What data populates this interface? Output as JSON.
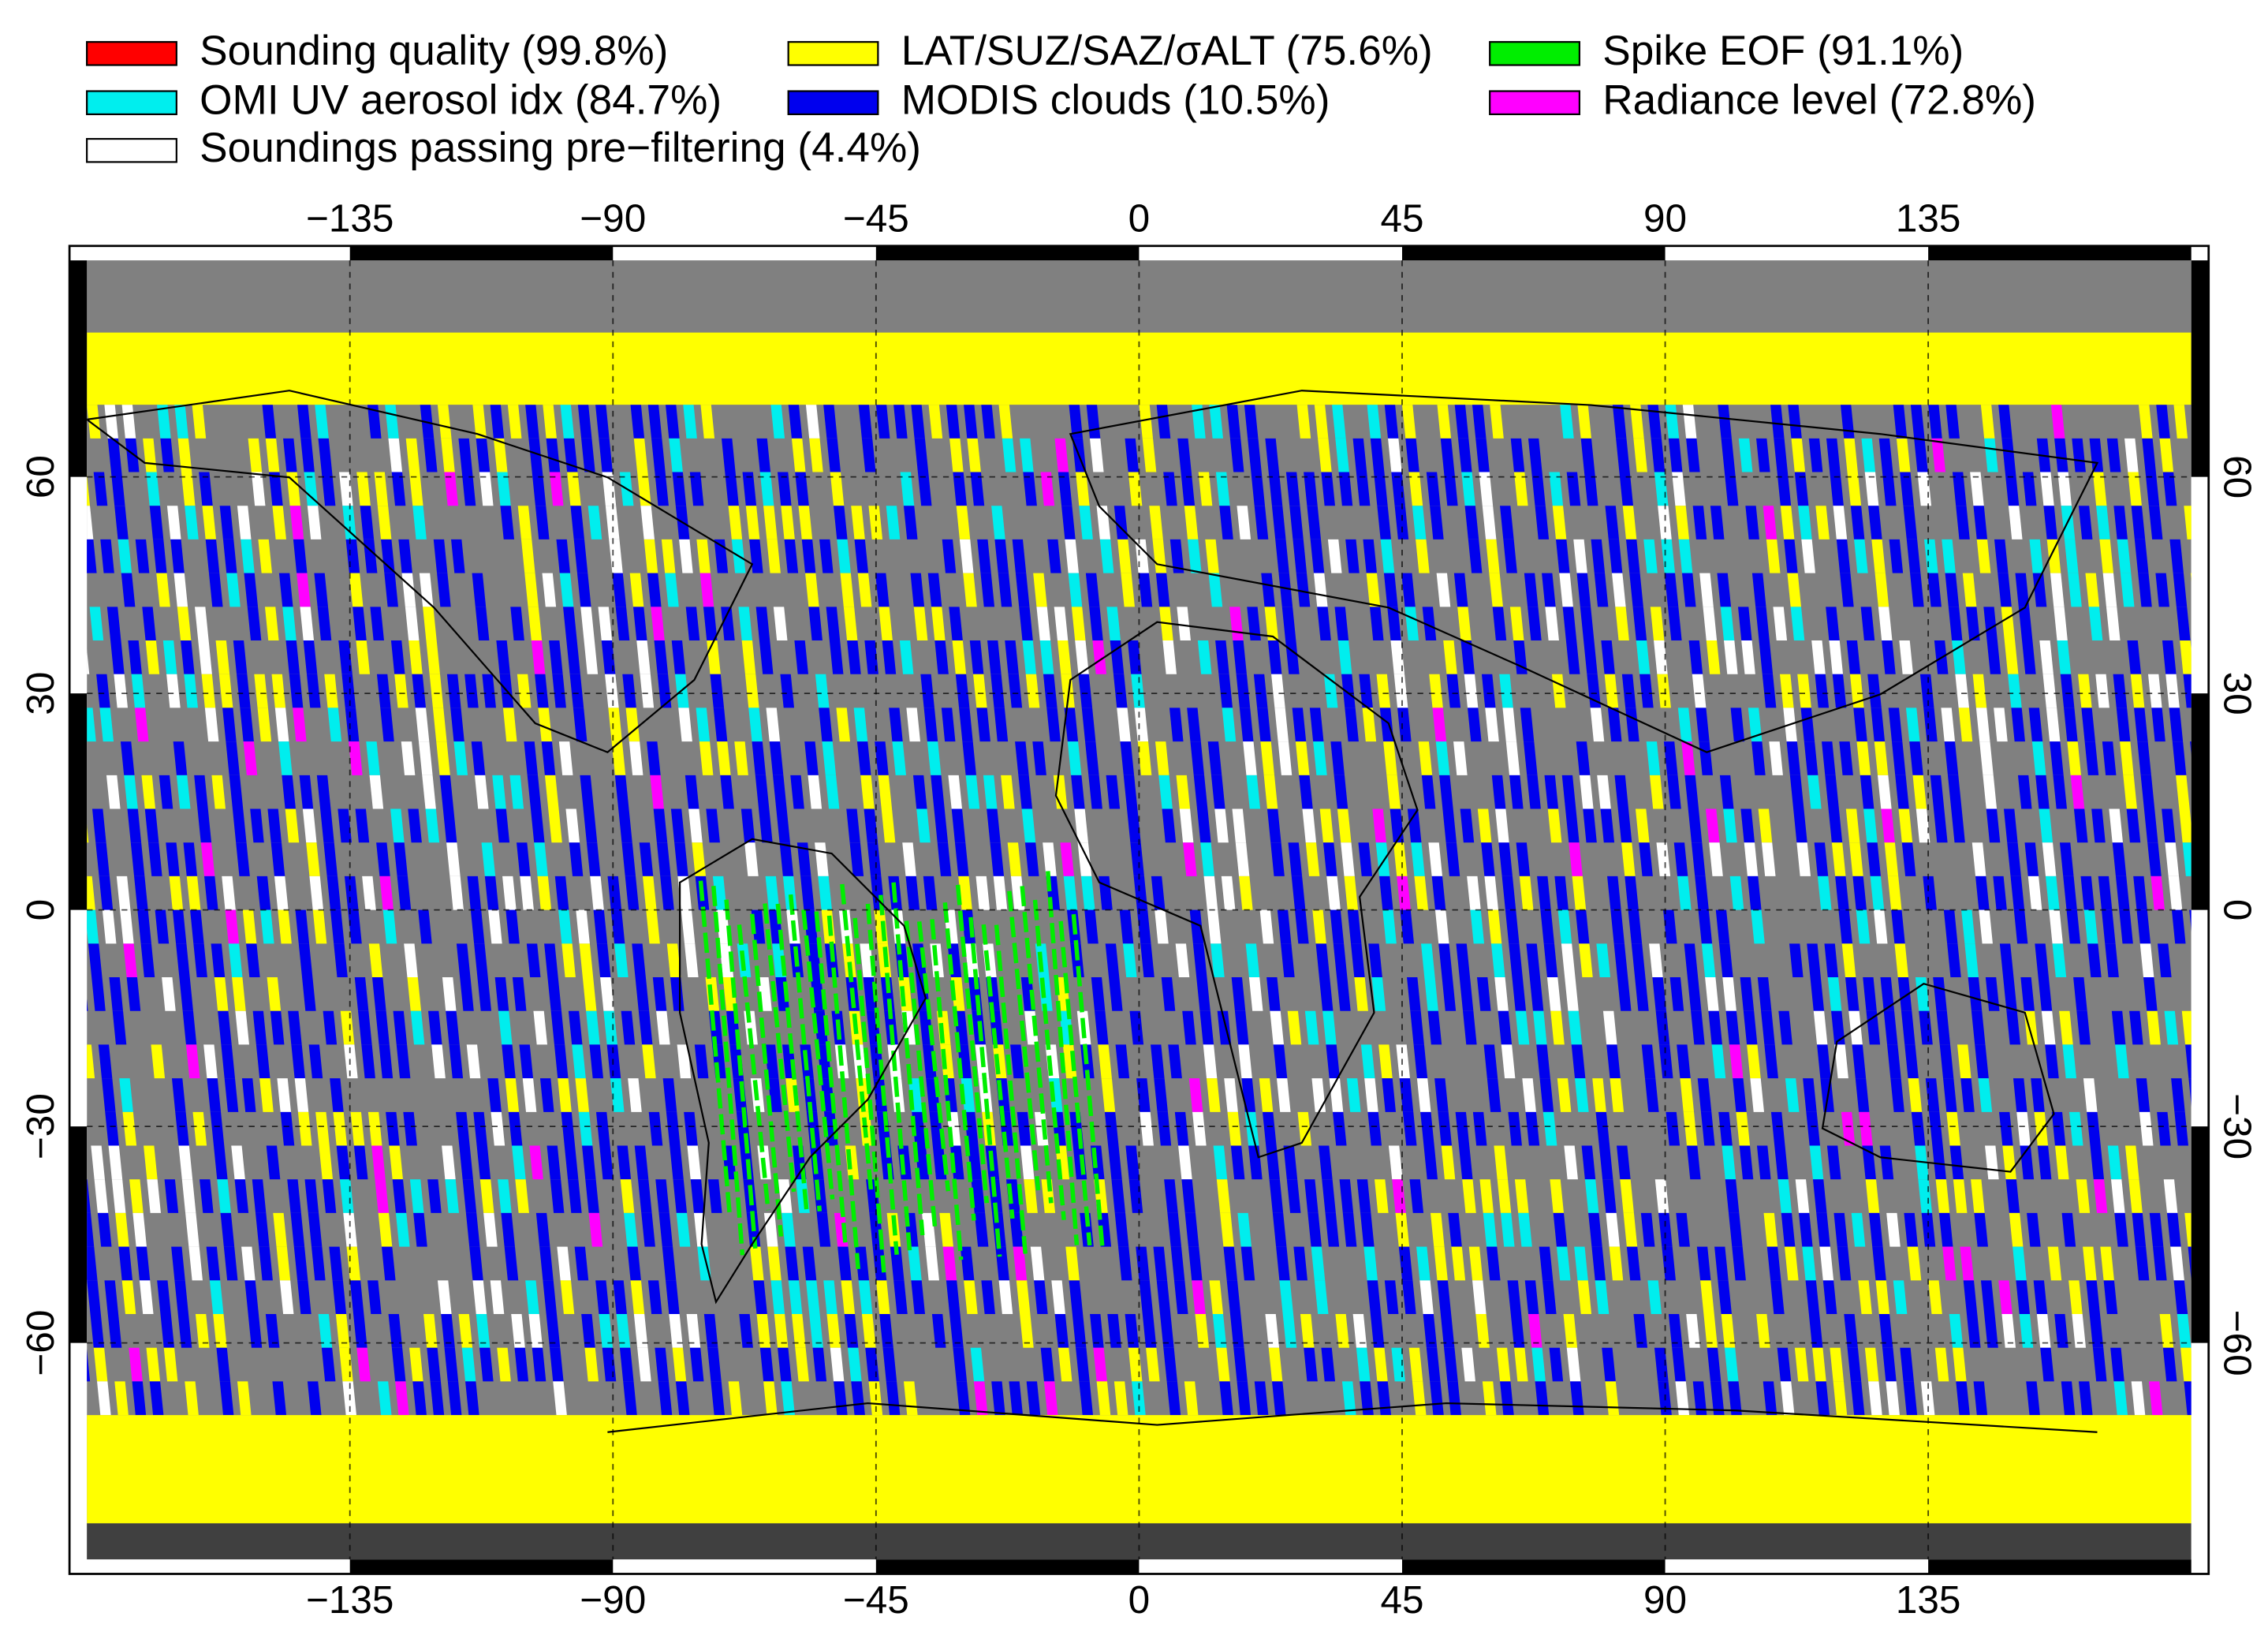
{
  "chart_data": {
    "type": "map",
    "legend": [
      {
        "name": "Sounding quality (99.8%)",
        "color": "#ff0000"
      },
      {
        "name": "LAT/SUZ/SAZ/σALT (75.6%)",
        "color": "#ffff00"
      },
      {
        "name": "Spike EOF (91.1%)",
        "color": "#00ee00"
      },
      {
        "name": "OMI UV aerosol idx (84.7%)",
        "color": "#00eeee"
      },
      {
        "name": "MODIS clouds (10.5%)",
        "color": "#0000ee"
      },
      {
        "name": "Radiance level (72.8%)",
        "color": "#ff00ff"
      },
      {
        "name": "Soundings passing pre−filtering (4.4%)",
        "color": "#ffffff"
      }
    ],
    "xlim": [
      -180,
      180
    ],
    "xticks": [
      {
        "value": -135,
        "label": "−135"
      },
      {
        "value": -90,
        "label": "−90"
      },
      {
        "value": -45,
        "label": "−45"
      },
      0,
      45,
      90,
      135
    ],
    "ylim": [
      -90,
      90
    ],
    "yticks": [
      {
        "value": -60,
        "label": "−60"
      },
      {
        "value": -30,
        "label": "−30"
      },
      0,
      30,
      60
    ],
    "grid": true
  }
}
